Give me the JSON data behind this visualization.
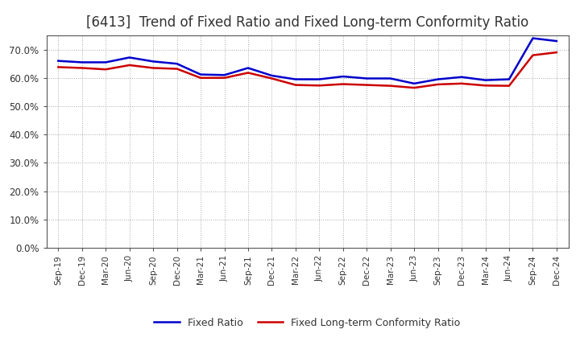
{
  "title": "[6413]  Trend of Fixed Ratio and Fixed Long-term Conformity Ratio",
  "title_fontsize": 12,
  "ylim": [
    0.0,
    0.75
  ],
  "yticks": [
    0.0,
    0.1,
    0.2,
    0.3,
    0.4,
    0.5,
    0.6,
    0.7
  ],
  "x_labels": [
    "Sep-19",
    "Dec-19",
    "Mar-20",
    "Jun-20",
    "Sep-20",
    "Dec-20",
    "Mar-21",
    "Jun-21",
    "Sep-21",
    "Dec-21",
    "Mar-22",
    "Jun-22",
    "Sep-22",
    "Dec-22",
    "Mar-23",
    "Jun-23",
    "Sep-23",
    "Dec-23",
    "Mar-24",
    "Jun-24",
    "Sep-24",
    "Dec-24"
  ],
  "fixed_ratio": [
    0.66,
    0.655,
    0.655,
    0.672,
    0.658,
    0.65,
    0.612,
    0.61,
    0.635,
    0.608,
    0.595,
    0.595,
    0.605,
    0.598,
    0.598,
    0.58,
    0.595,
    0.603,
    0.592,
    0.595,
    0.74,
    0.73
  ],
  "fixed_lt_ratio": [
    0.638,
    0.635,
    0.63,
    0.645,
    0.635,
    0.632,
    0.6,
    0.6,
    0.618,
    0.598,
    0.575,
    0.573,
    0.578,
    0.575,
    0.572,
    0.565,
    0.577,
    0.58,
    0.573,
    0.572,
    0.68,
    0.69
  ],
  "line_color_fixed": "#0000CC",
  "line_color_lt": "#CC0000",
  "line_width": 1.8,
  "legend_labels": [
    "Fixed Ratio",
    "Fixed Long-term Conformity Ratio"
  ],
  "background_color": "#FFFFFF",
  "plot_bg_color": "#FFFFFF",
  "grid_color": "#AAAAAA",
  "title_color": "#333333",
  "tick_color": "#333333"
}
